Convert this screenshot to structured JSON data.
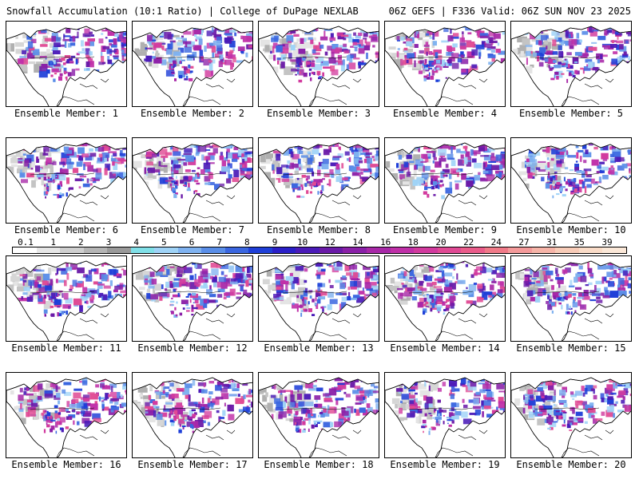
{
  "header": {
    "title": "Snowfall Accumulation (10:1 Ratio) | College of DuPage NEXLAB",
    "run_info": "06Z GEFS | F336 Valid: 06Z SUN NOV 23 2025"
  },
  "colorbar": {
    "labels": [
      "0.1",
      "1",
      "2",
      "3",
      "4",
      "5",
      "6",
      "7",
      "8",
      "9",
      "10",
      "12",
      "14",
      "16",
      "18",
      "20",
      "22",
      "24",
      "27",
      "31",
      "35",
      "39"
    ],
    "colors": [
      "#ffffff",
      "#e6e6e6",
      "#cfcfcf",
      "#b5b5b5",
      "#9a9a9a",
      "#80e0e8",
      "#9fd3f7",
      "#7fb2f0",
      "#5a8ee8",
      "#3a66e0",
      "#1f3fd8",
      "#2a1fc8",
      "#4a1ab8",
      "#6a1aa8",
      "#8a20a8",
      "#a828a8",
      "#c030a8",
      "#d23a9e",
      "#e04a94",
      "#ea5c8a",
      "#f07a88",
      "#f49a9a",
      "#f6b4a8",
      "#f8ccb8",
      "#fadcc8",
      "#fbe8d8"
    ]
  },
  "members": [
    {
      "label": "Ensemble Member: 1"
    },
    {
      "label": "Ensemble Member: 2"
    },
    {
      "label": "Ensemble Member: 3"
    },
    {
      "label": "Ensemble Member: 4"
    },
    {
      "label": "Ensemble Member: 5"
    },
    {
      "label": "Ensemble Member: 6"
    },
    {
      "label": "Ensemble Member: 7"
    },
    {
      "label": "Ensemble Member: 8"
    },
    {
      "label": "Ensemble Member: 9"
    },
    {
      "label": "Ensemble Member: 10"
    },
    {
      "label": "Ensemble Member: 11"
    },
    {
      "label": "Ensemble Member: 12"
    },
    {
      "label": "Ensemble Member: 13"
    },
    {
      "label": "Ensemble Member: 14"
    },
    {
      "label": "Ensemble Member: 15"
    },
    {
      "label": "Ensemble Member: 16"
    },
    {
      "label": "Ensemble Member: 17"
    },
    {
      "label": "Ensemble Member: 18"
    },
    {
      "label": "Ensemble Member: 19"
    },
    {
      "label": "Ensemble Member: 20"
    }
  ]
}
